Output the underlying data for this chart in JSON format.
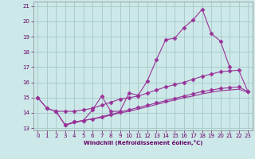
{
  "title": "",
  "xlabel": "Windchill (Refroidissement éolien,°C)",
  "bg_color": "#cce8e8",
  "grid_color": "#aacccc",
  "line_color": "#993399",
  "xlim": [
    -0.5,
    23.5
  ],
  "ylim": [
    12.85,
    21.3
  ],
  "xticks": [
    0,
    1,
    2,
    3,
    4,
    5,
    6,
    7,
    8,
    9,
    10,
    11,
    12,
    13,
    14,
    15,
    16,
    17,
    18,
    19,
    20,
    21,
    22,
    23
  ],
  "yticks": [
    13,
    14,
    15,
    16,
    17,
    18,
    19,
    20,
    21
  ],
  "series": [
    {
      "x": [
        0,
        1,
        2,
        3,
        4,
        5,
        6,
        7,
        8,
        9,
        10,
        11,
        12,
        13,
        14,
        15,
        16,
        17,
        18,
        19,
        20,
        21
      ],
      "y": [
        15.0,
        14.3,
        14.1,
        13.2,
        13.4,
        13.5,
        14.2,
        15.1,
        14.1,
        14.1,
        15.3,
        15.15,
        16.1,
        17.5,
        18.8,
        18.9,
        19.6,
        20.1,
        20.8,
        19.2,
        18.7,
        17.0
      ],
      "marker": "D",
      "markersize": 2.5
    },
    {
      "x": [
        0,
        1,
        2,
        3,
        4,
        5,
        6,
        7,
        8,
        9,
        10,
        11,
        12,
        13,
        14,
        15,
        16,
        17,
        18,
        19,
        20,
        21,
        22,
        23
      ],
      "y": [
        15.0,
        14.3,
        14.1,
        14.1,
        14.1,
        14.2,
        14.3,
        14.5,
        14.7,
        14.9,
        15.0,
        15.1,
        15.3,
        15.5,
        15.7,
        15.85,
        16.0,
        16.2,
        16.4,
        16.55,
        16.7,
        16.75,
        16.8,
        15.4
      ],
      "marker": "D",
      "markersize": 2.5
    },
    {
      "x": [
        2,
        3,
        4,
        5,
        6,
        7,
        8,
        9,
        10,
        11,
        12,
        13,
        14,
        15,
        16,
        17,
        18,
        19,
        20,
        21,
        22,
        23
      ],
      "y": [
        14.1,
        13.2,
        13.4,
        13.5,
        13.6,
        13.75,
        13.9,
        14.05,
        14.2,
        14.35,
        14.5,
        14.65,
        14.8,
        14.95,
        15.1,
        15.25,
        15.4,
        15.5,
        15.6,
        15.65,
        15.7,
        15.4
      ],
      "marker": "D",
      "markersize": 2.5
    },
    {
      "x": [
        3,
        4,
        5,
        6,
        7,
        8,
        9,
        10,
        11,
        12,
        13,
        14,
        15,
        16,
        17,
        18,
        19,
        20,
        21,
        22,
        23
      ],
      "y": [
        13.2,
        13.35,
        13.5,
        13.6,
        13.7,
        13.85,
        14.0,
        14.1,
        14.25,
        14.4,
        14.55,
        14.7,
        14.85,
        15.0,
        15.1,
        15.25,
        15.35,
        15.45,
        15.5,
        15.55,
        15.35
      ],
      "marker": null,
      "markersize": 0
    }
  ]
}
